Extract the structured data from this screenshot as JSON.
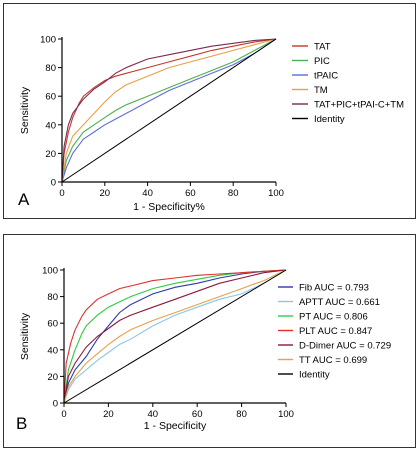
{
  "chart_data": [
    {
      "panel": "A",
      "type": "line",
      "title": "",
      "xlabel": "1 - Specificity%",
      "ylabel": "Sensitivity",
      "xlim": [
        0,
        100
      ],
      "ylim": [
        0,
        100
      ],
      "xticks": [
        "0",
        "20",
        "40",
        "60",
        "80",
        "100"
      ],
      "yticks": [
        "0",
        "20",
        "40",
        "60",
        "80",
        "100"
      ],
      "legend_position": "right",
      "series": [
        {
          "name": "TAT",
          "color": "#c0392b",
          "x": [
            0,
            1,
            3,
            5,
            8,
            10,
            15,
            20,
            25,
            30,
            40,
            50,
            60,
            70,
            80,
            90,
            100
          ],
          "y": [
            0,
            20,
            35,
            45,
            55,
            60,
            66,
            71,
            74,
            76,
            80,
            84,
            88,
            92,
            95,
            98,
            100
          ]
        },
        {
          "name": "PIC",
          "color": "#4caf50",
          "x": [
            0,
            2,
            5,
            10,
            15,
            20,
            25,
            30,
            40,
            50,
            60,
            70,
            80,
            90,
            100
          ],
          "y": [
            0,
            15,
            25,
            35,
            40,
            45,
            50,
            54,
            60,
            66,
            72,
            78,
            84,
            92,
            100
          ]
        },
        {
          "name": "tPAIC",
          "color": "#5b6fd6",
          "x": [
            0,
            2,
            5,
            10,
            15,
            20,
            25,
            30,
            35,
            40,
            50,
            60,
            70,
            80,
            90,
            100
          ],
          "y": [
            0,
            10,
            20,
            30,
            35,
            40,
            44,
            48,
            52,
            56,
            64,
            70,
            76,
            82,
            90,
            100
          ]
        },
        {
          "name": "TM",
          "color": "#e8a04a",
          "x": [
            0,
            2,
            5,
            10,
            15,
            20,
            25,
            30,
            40,
            50,
            60,
            70,
            80,
            90,
            100
          ],
          "y": [
            0,
            20,
            32,
            40,
            48,
            56,
            63,
            68,
            74,
            80,
            84,
            88,
            92,
            96,
            100
          ]
        },
        {
          "name": "TAT+PIC+tPAI-C+TM",
          "color": "#7b2a55",
          "x": [
            0,
            1,
            3,
            5,
            8,
            10,
            15,
            20,
            25,
            30,
            40,
            50,
            60,
            70,
            80,
            90,
            100
          ],
          "y": [
            0,
            25,
            40,
            48,
            54,
            58,
            65,
            70,
            76,
            80,
            86,
            89,
            92,
            95,
            97,
            99,
            100
          ]
        },
        {
          "name": "Identity",
          "color": "#000000",
          "x": [
            0,
            100
          ],
          "y": [
            0,
            100
          ]
        }
      ]
    },
    {
      "panel": "B",
      "type": "line",
      "title": "",
      "xlabel": "1 - Specificity",
      "ylabel": "Sensitivity",
      "xlim": [
        0,
        100
      ],
      "ylim": [
        0,
        100
      ],
      "xticks": [
        "0",
        "20",
        "40",
        "60",
        "80",
        "100"
      ],
      "yticks": [
        "0",
        "20",
        "40",
        "60",
        "80",
        "100"
      ],
      "legend_position": "right",
      "series": [
        {
          "name": "Fib AUC = 0.793",
          "color": "#2f3aa8",
          "x": [
            0,
            2,
            5,
            10,
            15,
            20,
            25,
            30,
            40,
            50,
            60,
            70,
            80,
            90,
            100
          ],
          "y": [
            0,
            15,
            25,
            35,
            48,
            58,
            68,
            74,
            82,
            87,
            90,
            94,
            97,
            99,
            100
          ]
        },
        {
          "name": "APTT AUC = 0.661",
          "color": "#8ec6e8",
          "x": [
            0,
            2,
            5,
            10,
            15,
            20,
            25,
            30,
            40,
            50,
            60,
            70,
            80,
            90,
            100
          ],
          "y": [
            0,
            10,
            18,
            25,
            32,
            38,
            44,
            48,
            58,
            66,
            72,
            78,
            82,
            90,
            100
          ]
        },
        {
          "name": "PT AUC = 0.806",
          "color": "#2ecc40",
          "x": [
            0,
            2,
            5,
            8,
            10,
            15,
            20,
            25,
            30,
            40,
            50,
            60,
            70,
            80,
            90,
            100
          ],
          "y": [
            0,
            25,
            40,
            52,
            58,
            66,
            72,
            76,
            80,
            86,
            90,
            93,
            96,
            98,
            99,
            100
          ]
        },
        {
          "name": "PLT AUC = 0.847",
          "color": "#e03030",
          "x": [
            0,
            1,
            3,
            5,
            8,
            10,
            15,
            20,
            25,
            30,
            40,
            50,
            60,
            70,
            80,
            90,
            100
          ],
          "y": [
            0,
            30,
            45,
            55,
            65,
            70,
            78,
            82,
            86,
            88,
            92,
            94,
            96,
            97,
            98,
            99,
            100
          ]
        },
        {
          "name": "D-Dimer AUC = 0.729",
          "color": "#8b1a3a",
          "x": [
            0,
            2,
            5,
            10,
            15,
            20,
            25,
            30,
            40,
            50,
            60,
            70,
            80,
            90,
            100
          ],
          "y": [
            0,
            20,
            30,
            42,
            50,
            56,
            62,
            66,
            72,
            78,
            84,
            90,
            94,
            98,
            100
          ]
        },
        {
          "name": "TT AUC = 0.699",
          "color": "#e8a04a",
          "x": [
            0,
            2,
            5,
            10,
            15,
            20,
            25,
            30,
            40,
            50,
            60,
            70,
            80,
            90,
            100
          ],
          "y": [
            0,
            12,
            20,
            30,
            37,
            44,
            50,
            55,
            62,
            68,
            74,
            80,
            86,
            92,
            100
          ]
        },
        {
          "name": "Identity",
          "color": "#000000",
          "x": [
            0,
            100
          ],
          "y": [
            0,
            100
          ]
        }
      ]
    }
  ]
}
